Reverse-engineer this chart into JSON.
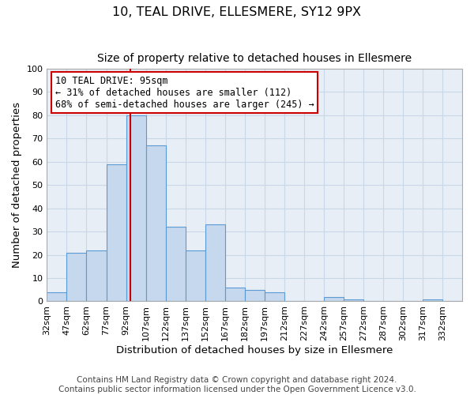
{
  "title": "10, TEAL DRIVE, ELLESMERE, SY12 9PX",
  "subtitle": "Size of property relative to detached houses in Ellesmere",
  "xlabel": "Distribution of detached houses by size in Ellesmere",
  "ylabel": "Number of detached properties",
  "bin_labels": [
    "32sqm",
    "47sqm",
    "62sqm",
    "77sqm",
    "92sqm",
    "107sqm",
    "122sqm",
    "137sqm",
    "152sqm",
    "167sqm",
    "182sqm",
    "197sqm",
    "212sqm",
    "227sqm",
    "242sqm",
    "257sqm",
    "272sqm",
    "287sqm",
    "302sqm",
    "317sqm",
    "332sqm"
  ],
  "bin_edges": [
    32,
    47,
    62,
    77,
    92,
    107,
    122,
    137,
    152,
    167,
    182,
    197,
    212,
    227,
    242,
    257,
    272,
    287,
    302,
    317,
    332,
    347
  ],
  "bar_heights": [
    4,
    21,
    22,
    59,
    80,
    67,
    32,
    22,
    33,
    6,
    5,
    4,
    0,
    0,
    2,
    1,
    0,
    0,
    0,
    1,
    0
  ],
  "bar_color": "#c5d8ed",
  "bar_edge_color": "#5b9bd5",
  "vline_x": 95,
  "vline_color": "#cc0000",
  "annotation_line1": "10 TEAL DRIVE: 95sqm",
  "annotation_line2": "← 31% of detached houses are smaller (112)",
  "annotation_line3": "68% of semi-detached houses are larger (245) →",
  "ylim": [
    0,
    100
  ],
  "yticks": [
    0,
    10,
    20,
    30,
    40,
    50,
    60,
    70,
    80,
    90,
    100
  ],
  "footer_line1": "Contains HM Land Registry data © Crown copyright and database right 2024.",
  "footer_line2": "Contains public sector information licensed under the Open Government Licence v3.0.",
  "background_color": "#ffffff",
  "plot_bg_color": "#e8eef5",
  "grid_color": "#c8d8e8",
  "title_fontsize": 11.5,
  "subtitle_fontsize": 10,
  "axis_label_fontsize": 9.5,
  "tick_fontsize": 8,
  "annotation_fontsize": 8.5,
  "footer_fontsize": 7.5
}
